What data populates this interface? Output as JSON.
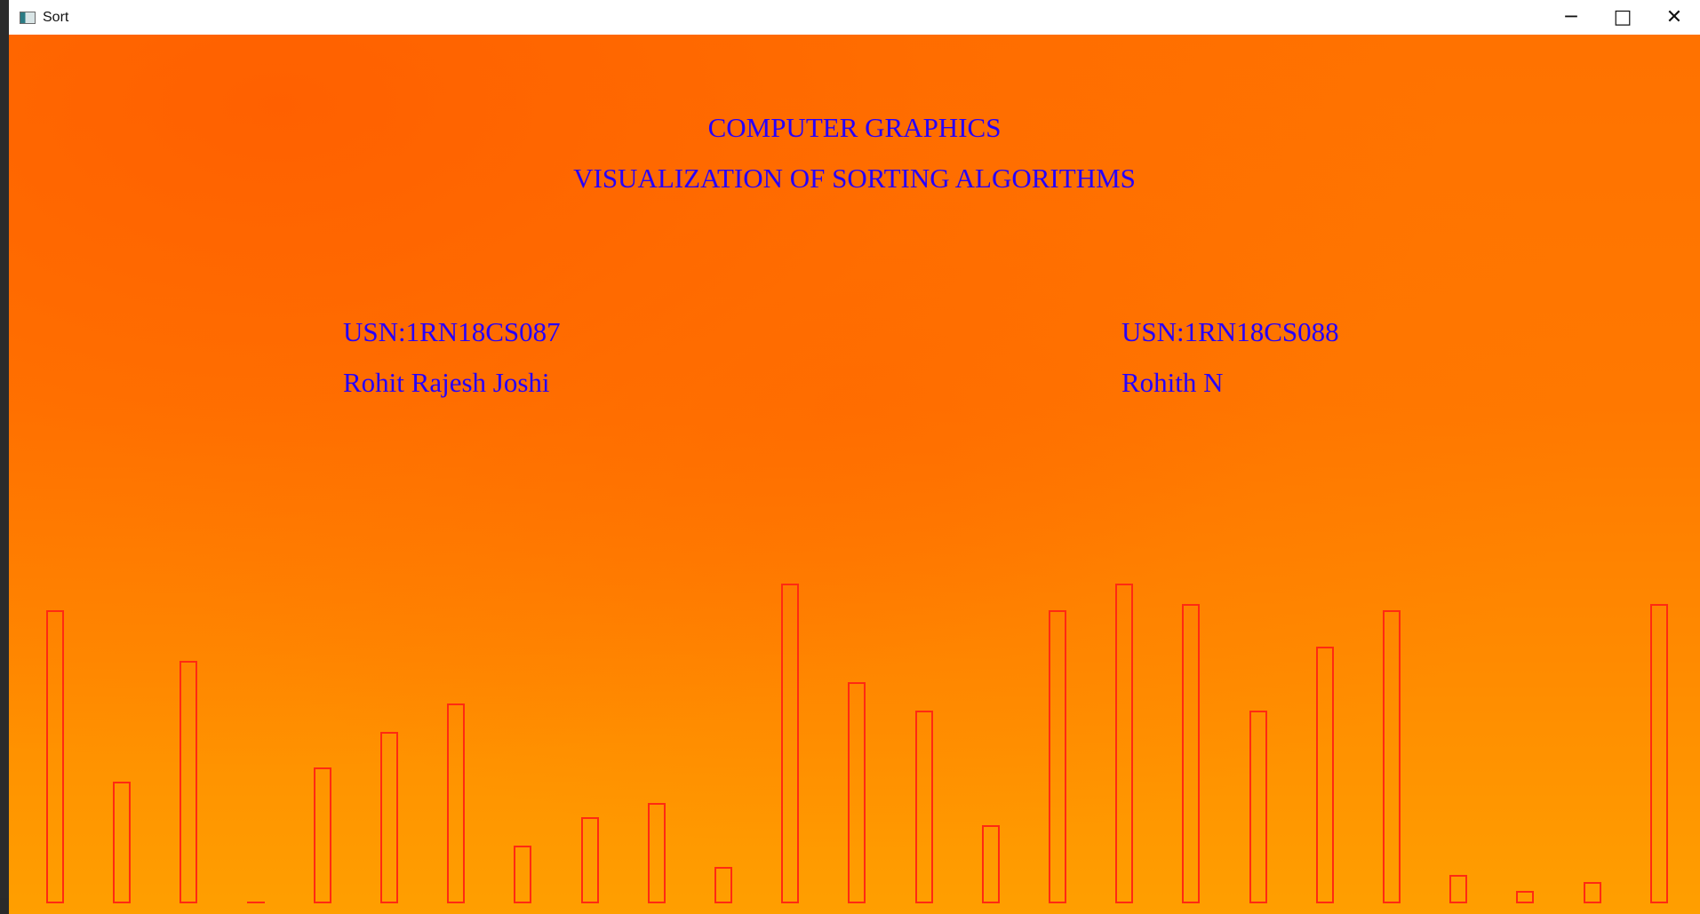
{
  "window": {
    "title": "Sort",
    "controls": {
      "minimize": "─",
      "maximize": "□",
      "close": "✕"
    }
  },
  "screen": {
    "heading": "COMPUTER GRAPHICS",
    "subtitle": "VISUALIZATION OF SORTING ALGORITHMS",
    "students": [
      {
        "usn": "USN:1RN18CS087",
        "name": "Rohit Rajesh Joshi"
      },
      {
        "usn": "USN:1RN18CS088",
        "name": "Rohith N"
      }
    ],
    "bar_values": [
      330,
      137,
      273,
      0,
      153,
      193,
      225,
      65,
      97,
      113,
      41,
      360,
      249,
      217,
      88,
      330,
      360,
      337,
      217,
      289,
      330,
      32,
      14,
      24,
      337
    ],
    "bar_color": "#ff2a12",
    "text_color": "#2600ff",
    "background_colors": [
      "#ff6f00",
      "#ff9f00"
    ]
  },
  "icons": {
    "app": "application-window-icon",
    "minimize": "minimize-icon",
    "maximize": "maximize-icon",
    "close": "close-icon"
  }
}
